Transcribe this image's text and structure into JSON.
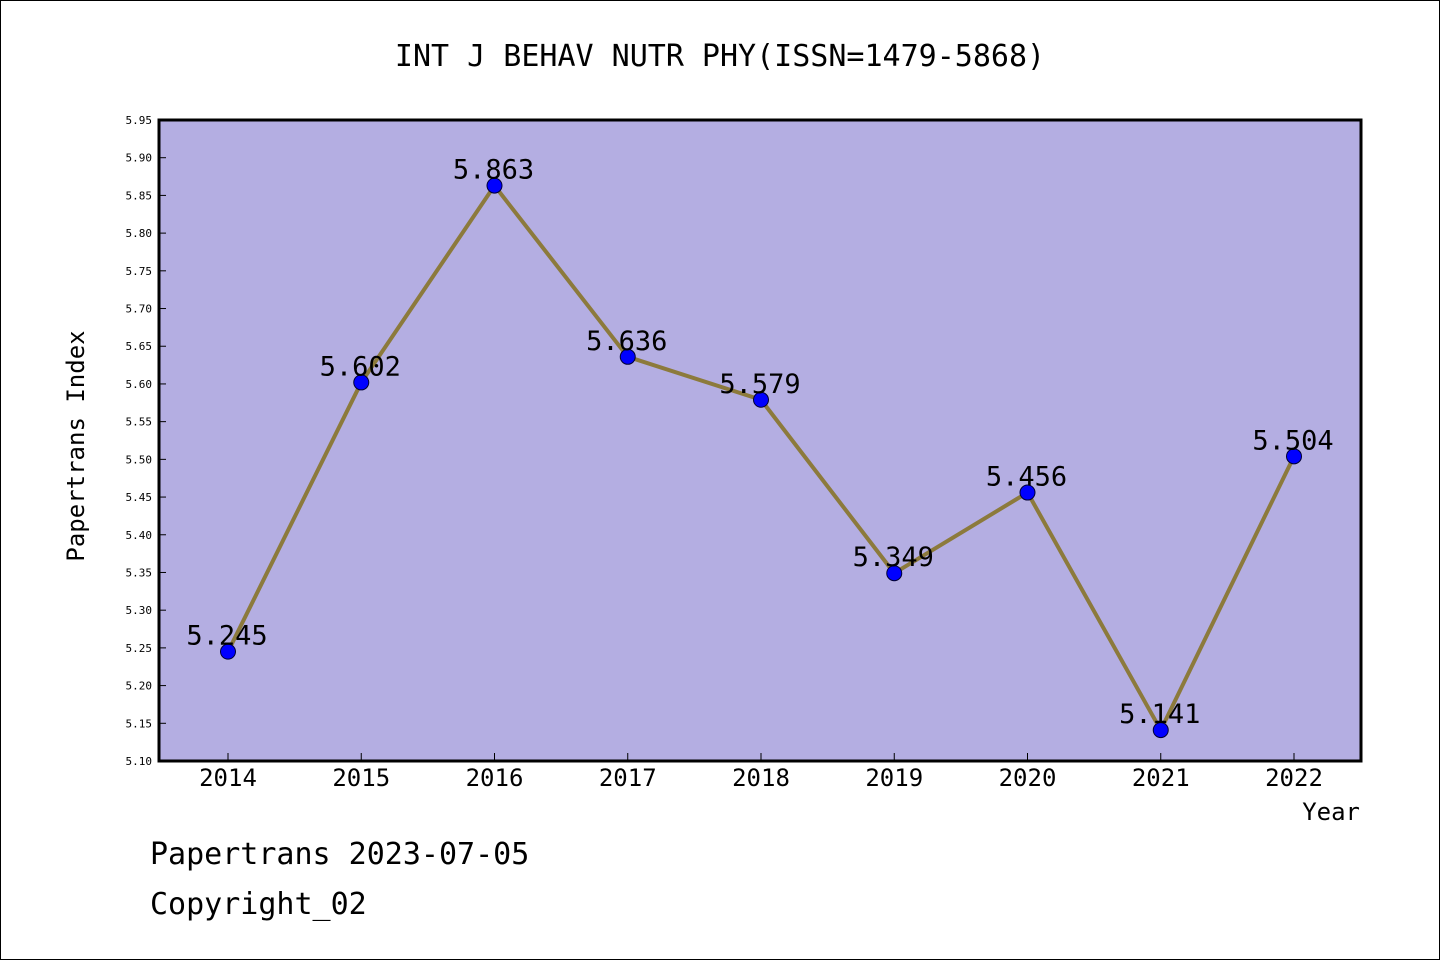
{
  "chart_data": {
    "type": "line",
    "title": "INT J BEHAV NUTR PHY(ISSN=1479-5868)",
    "xlabel": "Year",
    "ylabel": "Papertrans Index",
    "x": [
      "2014",
      "2015",
      "2016",
      "2017",
      "2018",
      "2019",
      "2020",
      "2021",
      "2022"
    ],
    "values": [
      5.245,
      5.602,
      5.863,
      5.636,
      5.579,
      5.349,
      5.456,
      5.141,
      5.504
    ],
    "data_labels": [
      "5.245",
      "5.602",
      "5.863",
      "5.636",
      "5.579",
      "5.349",
      "5.456",
      "5.141",
      "5.504"
    ],
    "ylim": [
      5.1,
      5.95
    ],
    "yticks": [
      "5.10",
      "5.15",
      "5.20",
      "5.25",
      "5.30",
      "5.35",
      "5.40",
      "5.45",
      "5.50",
      "5.55",
      "5.60",
      "5.65",
      "5.70",
      "5.75",
      "5.80",
      "5.85",
      "5.90",
      "5.95"
    ],
    "grid": false,
    "legend": "none",
    "colors": {
      "plot_background": "#b4aee2",
      "line": "#8c7a3c",
      "marker": "#0000ff"
    }
  },
  "footer": {
    "line1": "Papertrans 2023-07-05",
    "line2": "Copyright_02"
  }
}
